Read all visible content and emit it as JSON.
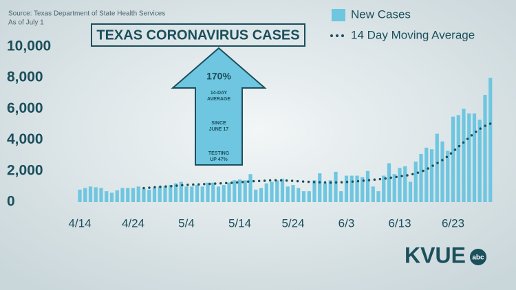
{
  "source": [
    "Source: Texas Department of State Health Services",
    "As of July 1"
  ],
  "logo": {
    "main": "KVUE",
    "badge": "abc"
  },
  "chart_data": {
    "type": "bar",
    "title": "TEXAS CORONAVIRUS CASES",
    "annotations": [
      [
        "170%"
      ],
      [
        "14-DAY",
        "AVERAGE"
      ],
      [
        "SINCE",
        "JUNE 17"
      ],
      [
        "TESTING",
        "UP 47%"
      ]
    ],
    "categories": [
      "4/14",
      null,
      null,
      null,
      null,
      null,
      null,
      null,
      null,
      null,
      "4/24",
      null,
      null,
      null,
      null,
      null,
      null,
      null,
      null,
      null,
      "5/4",
      null,
      null,
      null,
      null,
      null,
      null,
      null,
      null,
      null,
      "5/14",
      null,
      null,
      null,
      null,
      null,
      null,
      null,
      null,
      null,
      "5/24",
      null,
      null,
      null,
      null,
      null,
      null,
      null,
      null,
      null,
      "6/3",
      null,
      null,
      null,
      null,
      null,
      null,
      null,
      null,
      null,
      "6/13",
      null,
      null,
      null,
      null,
      null,
      null,
      null,
      null,
      null,
      "6/23",
      null,
      null,
      null,
      null,
      null,
      null,
      null
    ],
    "series": [
      {
        "name": "New Cases",
        "color": "#6ec6e0",
        "kind": "bar",
        "values": [
          800,
          900,
          1000,
          950,
          900,
          700,
          600,
          750,
          900,
          900,
          900,
          1000,
          850,
          800,
          900,
          1000,
          1000,
          1100,
          1200,
          1300,
          1000,
          1000,
          1100,
          1000,
          1250,
          1250,
          1000,
          1100,
          1250,
          1400,
          1450,
          1400,
          1800,
          800,
          900,
          1200,
          1300,
          1400,
          1500,
          1000,
          1100,
          900,
          700,
          700,
          1400,
          1850,
          1200,
          1400,
          1950,
          700,
          1700,
          1700,
          1700,
          1600,
          2000,
          1000,
          700,
          1700,
          2500,
          1800,
          2200,
          2300,
          1300,
          2600,
          3100,
          3500,
          3400,
          4400,
          3900,
          3300,
          5500,
          5600,
          6000,
          5700,
          5700,
          5300,
          6900,
          8000
        ]
      },
      {
        "name": "14 Day Moving Average",
        "color": "#1b4f5c",
        "kind": "line",
        "values": [
          null,
          null,
          null,
          null,
          null,
          null,
          null,
          null,
          null,
          null,
          null,
          null,
          900,
          920,
          950,
          980,
          1000,
          1020,
          1050,
          1080,
          1100,
          1120,
          1130,
          1150,
          1160,
          1180,
          1200,
          1220,
          1230,
          1250,
          1270,
          1300,
          1330,
          1350,
          1360,
          1380,
          1400,
          1400,
          1390,
          1380,
          1360,
          1340,
          1320,
          1300,
          1280,
          1270,
          1260,
          1250,
          1260,
          1270,
          1290,
          1310,
          1340,
          1370,
          1400,
          1430,
          1470,
          1500,
          1550,
          1600,
          1650,
          1700,
          1750,
          1850,
          1950,
          2100,
          2300,
          2500,
          2700,
          2950,
          3250,
          3550,
          3850,
          4150,
          4450,
          4700,
          4900,
          5050
        ]
      }
    ],
    "ylim": [
      0,
      10000
    ],
    "yticks": [
      0,
      {
        "value": 2000,
        "label": "2,000"
      },
      {
        "value": 4000,
        "label": "4,000"
      },
      {
        "value": 6000,
        "label": "6,000"
      },
      {
        "value": 8000,
        "label": "8,000"
      },
      {
        "value": 10000,
        "label": "10,000"
      }
    ],
    "grid": false,
    "legend": "top-right"
  }
}
